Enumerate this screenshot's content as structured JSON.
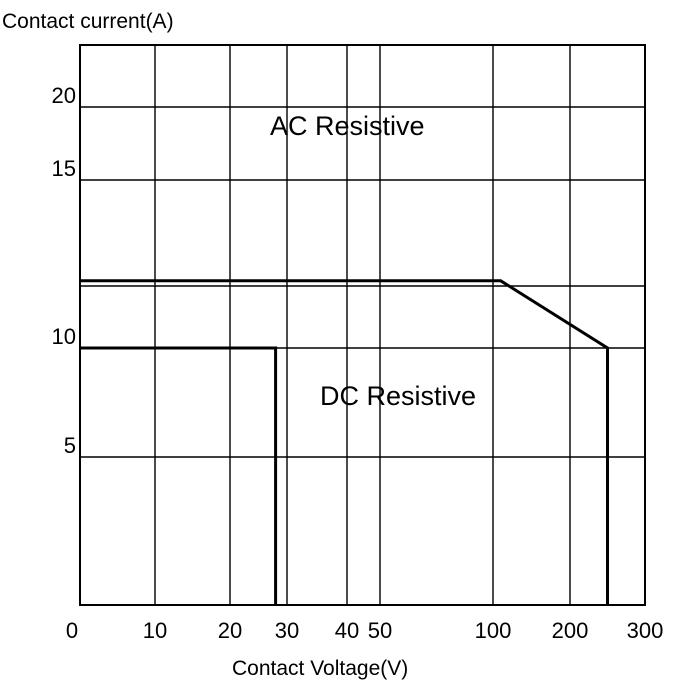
{
  "chart_data": {
    "type": "line",
    "title": "",
    "ylabel": "Contact current(A)",
    "xlabel": "Contact Voltage(V)",
    "grid": true,
    "x_ticks": [
      "0",
      "10",
      "20",
      "30",
      "40",
      "50",
      "100",
      "200",
      "300"
    ],
    "y_ticks": [
      "5",
      "10",
      "15",
      "20"
    ],
    "series": [
      {
        "name": "AC Resistive",
        "points": [
          {
            "x": 0,
            "y": 12
          },
          {
            "x": 110,
            "y": 12
          },
          {
            "x": 250,
            "y": 10
          },
          {
            "x": 250,
            "y": 0
          }
        ]
      },
      {
        "name": "DC Resistive",
        "points": [
          {
            "x": 0,
            "y": 10
          },
          {
            "x": 28,
            "y": 10
          },
          {
            "x": 28,
            "y": 0
          }
        ]
      }
    ]
  },
  "colors": {
    "grid": "#000000",
    "line": "#000000",
    "background": "#ffffff"
  }
}
